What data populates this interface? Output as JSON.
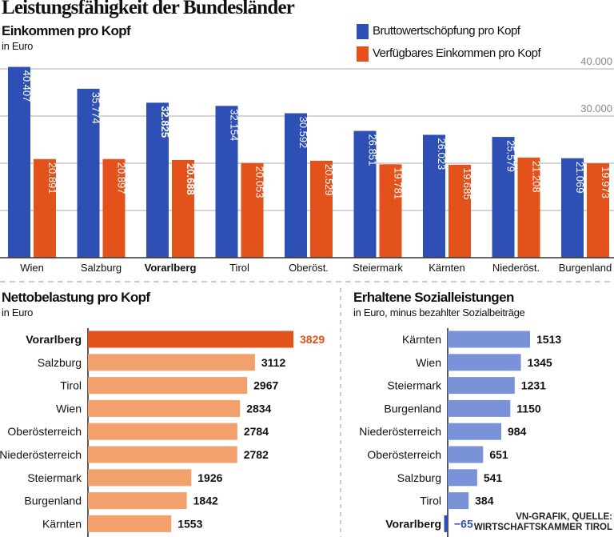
{
  "title": "Leistungsfähigkeit der Bundesländer",
  "colors": {
    "blue": "#2e4fb4",
    "orange": "#e2521a",
    "light_orange": "#f2a06c",
    "light_blue": "#7a93d8",
    "grid": "#999999"
  },
  "chart_data": [
    {
      "type": "bar",
      "title": "Einkommen pro Kopf",
      "subtitle": "in Euro",
      "categories": [
        "Wien",
        "Salzburg",
        "Vorarlberg",
        "Tirol",
        "Oberöst.",
        "Steiermark",
        "Kärnten",
        "Niederöst.",
        "Burgenland"
      ],
      "highlight": "Vorarlberg",
      "series": [
        {
          "name": "Bruttowertschöpfung pro Kopf",
          "values": [
            40407,
            35774,
            32825,
            32154,
            30592,
            26851,
            26023,
            25579,
            21069
          ],
          "labels": [
            "40.407",
            "35.774",
            "32.825",
            "32.154",
            "30.592",
            "26.851",
            "26.023",
            "25.579",
            "21.069"
          ]
        },
        {
          "name": "Verfügbares Einkommen pro Kopf",
          "values": [
            20891,
            20897,
            20688,
            20053,
            20529,
            19781,
            19685,
            21208,
            19973
          ],
          "labels": [
            "20.891",
            "20.897",
            "20.688",
            "20.053",
            "20.529",
            "19.781",
            "19.685",
            "21.208",
            "19.973"
          ]
        }
      ],
      "ylim": [
        0,
        40000
      ],
      "yticks": [
        {
          "value": 40000,
          "label": "40.000"
        },
        {
          "value": 30000,
          "label": "30.000"
        }
      ],
      "grid": true,
      "legend": "top-right"
    },
    {
      "type": "bar",
      "orientation": "horizontal",
      "title": "Nettobelastung pro Kopf",
      "subtitle": "in Euro",
      "categories": [
        "Vorarlberg",
        "Salzburg",
        "Tirol",
        "Wien",
        "Oberösterreich",
        "Niederösterreich",
        "Steiermark",
        "Burgenland",
        "Kärnten"
      ],
      "values": [
        3829,
        3112,
        2967,
        2834,
        2784,
        2782,
        1926,
        1842,
        1553
      ],
      "highlight": "Vorarlberg"
    },
    {
      "type": "bar",
      "orientation": "horizontal",
      "title": "Erhaltene Sozialleistungen",
      "subtitle": "in Euro, minus bezahlter Sozialbeiträge",
      "categories": [
        "Kärnten",
        "Wien",
        "Steiermark",
        "Burgenland",
        "Niederösterreich",
        "Oberösterreich",
        "Salzburg",
        "Tirol",
        "Vorarlberg"
      ],
      "values": [
        1513,
        1345,
        1231,
        1150,
        984,
        651,
        541,
        384,
        -65
      ],
      "value_labels": [
        "1513",
        "1345",
        "1231",
        "1150",
        "984",
        "651",
        "541",
        "384",
        "−65"
      ],
      "highlight": "Vorarlberg"
    }
  ],
  "source": [
    "VN-GRAFIK, QUELLE:",
    "WIRTSCHAFTSKAMMER TIROL"
  ]
}
